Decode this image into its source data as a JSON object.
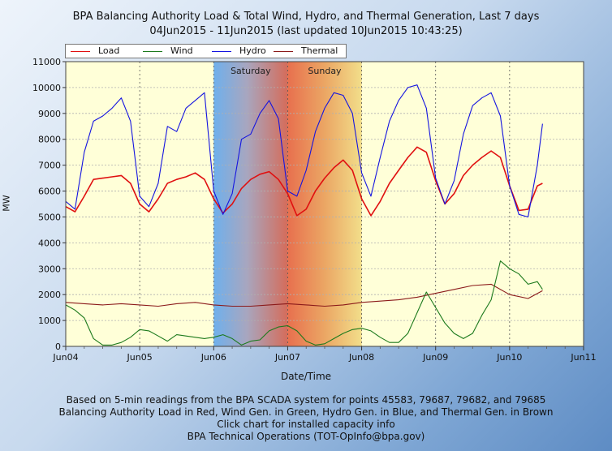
{
  "title": "BPA Balancing Authority Load & Total Wind, Hydro, and Thermal Generation, Last 7 days",
  "subtitle": "04Jun2015 - 11Jun2015 (last updated 10Jun2015 10:43:25)",
  "footer": [
    "Based on 5-min readings from the BPA SCADA system for points 45583, 79687, 79682, and 79685",
    "Balancing Authority Load in Red, Wind Gen. in Green, Hydro Gen. in Blue, and Thermal Gen. in Brown",
    "Click chart for installed capacity info",
    "BPA Technical Operations (TOT-OpInfo@bpa.gov)"
  ],
  "colors": {
    "load": "#e01010",
    "wind": "#1d7a1d",
    "hydro": "#1414e0",
    "thermal": "#8b1a1a",
    "plot_background": "#ffffd8",
    "grid": "#b0b0b0"
  },
  "chart_data": {
    "type": "line",
    "title": "BPA Balancing Authority Load & Total Wind, Hydro, and Thermal Generation, Last 7 days",
    "subtitle": "04Jun2015 - 11Jun2015 (last updated 10Jun2015 10:43:25)",
    "xlabel": "Date/Time",
    "ylabel": "MW",
    "xlim": [
      "2015-06-04 00:00",
      "2015-06-11 00:00"
    ],
    "ylim": [
      0,
      11000
    ],
    "x_ticks": [
      "Jun04",
      "Jun05",
      "Jun06",
      "Jun07",
      "Jun08",
      "Jun09",
      "Jun10",
      "Jun11"
    ],
    "y_ticks": [
      0,
      1000,
      2000,
      3000,
      4000,
      5000,
      6000,
      7000,
      8000,
      9000,
      10000,
      11000
    ],
    "grid": true,
    "legend": "top-left",
    "weekend_bands": [
      {
        "label": "Saturday",
        "start": "2015-06-06 00:00",
        "end": "2015-06-07 00:00"
      },
      {
        "label": "Sunday",
        "start": "2015-06-07 00:00",
        "end": "2015-06-08 00:00"
      }
    ],
    "series": [
      {
        "name": "Load",
        "x": [
          "06-04 00:00",
          "06-04 03:00",
          "06-04 06:00",
          "06-04 09:00",
          "06-04 12:00",
          "06-04 15:00",
          "06-04 18:00",
          "06-04 21:00",
          "06-05 00:00",
          "06-05 03:00",
          "06-05 06:00",
          "06-05 09:00",
          "06-05 12:00",
          "06-05 15:00",
          "06-05 18:00",
          "06-05 21:00",
          "06-06 00:00",
          "06-06 03:00",
          "06-06 06:00",
          "06-06 09:00",
          "06-06 12:00",
          "06-06 15:00",
          "06-06 18:00",
          "06-06 21:00",
          "06-07 00:00",
          "06-07 03:00",
          "06-07 06:00",
          "06-07 09:00",
          "06-07 12:00",
          "06-07 15:00",
          "06-07 18:00",
          "06-07 21:00",
          "06-08 00:00",
          "06-08 03:00",
          "06-08 06:00",
          "06-08 09:00",
          "06-08 12:00",
          "06-08 15:00",
          "06-08 18:00",
          "06-08 21:00",
          "06-09 00:00",
          "06-09 03:00",
          "06-09 06:00",
          "06-09 09:00",
          "06-09 12:00",
          "06-09 15:00",
          "06-09 18:00",
          "06-09 21:00",
          "06-10 00:00",
          "06-10 03:00",
          "06-10 06:00",
          "06-10 09:00",
          "06-10 10:40"
        ],
        "y": [
          5400,
          5200,
          5800,
          6450,
          6500,
          6550,
          6600,
          6300,
          5500,
          5200,
          5700,
          6300,
          6450,
          6550,
          6700,
          6450,
          5700,
          5150,
          5500,
          6100,
          6450,
          6650,
          6750,
          6450,
          5900,
          5050,
          5300,
          6000,
          6500,
          6900,
          7200,
          6800,
          5700,
          5050,
          5600,
          6300,
          6800,
          7300,
          7700,
          7500,
          6400,
          5500,
          5900,
          6600,
          7000,
          7300,
          7550,
          7300,
          6200,
          5250,
          5300,
          6200,
          6300
        ]
      },
      {
        "name": "Wind",
        "x": [
          "06-04 00:00",
          "06-04 03:00",
          "06-04 06:00",
          "06-04 09:00",
          "06-04 12:00",
          "06-04 15:00",
          "06-04 18:00",
          "06-04 21:00",
          "06-05 00:00",
          "06-05 03:00",
          "06-05 06:00",
          "06-05 09:00",
          "06-05 12:00",
          "06-05 15:00",
          "06-05 18:00",
          "06-05 21:00",
          "06-06 00:00",
          "06-06 03:00",
          "06-06 06:00",
          "06-06 09:00",
          "06-06 12:00",
          "06-06 15:00",
          "06-06 18:00",
          "06-06 21:00",
          "06-07 00:00",
          "06-07 03:00",
          "06-07 06:00",
          "06-07 09:00",
          "06-07 12:00",
          "06-07 15:00",
          "06-07 18:00",
          "06-07 21:00",
          "06-08 00:00",
          "06-08 03:00",
          "06-08 06:00",
          "06-08 09:00",
          "06-08 12:00",
          "06-08 15:00",
          "06-08 18:00",
          "06-08 21:00",
          "06-09 00:00",
          "06-09 03:00",
          "06-09 06:00",
          "06-09 09:00",
          "06-09 12:00",
          "06-09 15:00",
          "06-09 18:00",
          "06-09 21:00",
          "06-10 00:00",
          "06-10 03:00",
          "06-10 06:00",
          "06-10 09:00",
          "06-10 10:40"
        ],
        "y": [
          1600,
          1400,
          1100,
          300,
          50,
          50,
          150,
          350,
          650,
          600,
          400,
          200,
          450,
          400,
          350,
          300,
          350,
          450,
          300,
          50,
          200,
          250,
          600,
          750,
          800,
          600,
          200,
          50,
          100,
          300,
          500,
          650,
          700,
          600,
          350,
          150,
          150,
          500,
          1300,
          2100,
          1500,
          900,
          500,
          300,
          500,
          1200,
          1800,
          3300,
          3000,
          2800,
          2400,
          2500,
          2200
        ]
      },
      {
        "name": "Hydro",
        "x": [
          "06-04 00:00",
          "06-04 03:00",
          "06-04 06:00",
          "06-04 09:00",
          "06-04 12:00",
          "06-04 15:00",
          "06-04 18:00",
          "06-04 21:00",
          "06-05 00:00",
          "06-05 03:00",
          "06-05 06:00",
          "06-05 09:00",
          "06-05 12:00",
          "06-05 15:00",
          "06-05 18:00",
          "06-05 21:00",
          "06-06 00:00",
          "06-06 03:00",
          "06-06 06:00",
          "06-06 09:00",
          "06-06 12:00",
          "06-06 15:00",
          "06-06 18:00",
          "06-06 21:00",
          "06-07 00:00",
          "06-07 03:00",
          "06-07 06:00",
          "06-07 09:00",
          "06-07 12:00",
          "06-07 15:00",
          "06-07 18:00",
          "06-07 21:00",
          "06-08 00:00",
          "06-08 03:00",
          "06-08 06:00",
          "06-08 09:00",
          "06-08 12:00",
          "06-08 15:00",
          "06-08 18:00",
          "06-08 21:00",
          "06-09 00:00",
          "06-09 03:00",
          "06-09 06:00",
          "06-09 09:00",
          "06-09 12:00",
          "06-09 15:00",
          "06-09 18:00",
          "06-09 21:00",
          "06-10 00:00",
          "06-10 03:00",
          "06-10 06:00",
          "06-10 09:00",
          "06-10 10:40"
        ],
        "y": [
          5600,
          5300,
          7500,
          8700,
          8900,
          9200,
          9600,
          8700,
          5800,
          5400,
          6300,
          8500,
          8300,
          9200,
          9500,
          9800,
          6000,
          5100,
          5900,
          8000,
          8200,
          9000,
          9500,
          8800,
          6000,
          5800,
          6800,
          8300,
          9200,
          9800,
          9700,
          9000,
          6700,
          5800,
          7300,
          8700,
          9500,
          10000,
          10100,
          9200,
          6500,
          5500,
          6400,
          8200,
          9300,
          9600,
          9800,
          8900,
          6200,
          5100,
          5000,
          7000,
          8600
        ]
      },
      {
        "name": "Thermal",
        "x": [
          "06-04 00:00",
          "06-04 06:00",
          "06-04 12:00",
          "06-04 18:00",
          "06-05 00:00",
          "06-05 06:00",
          "06-05 12:00",
          "06-05 18:00",
          "06-06 00:00",
          "06-06 06:00",
          "06-06 12:00",
          "06-06 18:00",
          "06-07 00:00",
          "06-07 06:00",
          "06-07 12:00",
          "06-07 18:00",
          "06-08 00:00",
          "06-08 06:00",
          "06-08 12:00",
          "06-08 18:00",
          "06-09 00:00",
          "06-09 06:00",
          "06-09 12:00",
          "06-09 18:00",
          "06-10 00:00",
          "06-10 06:00",
          "06-10 10:40"
        ],
        "y": [
          1700,
          1650,
          1600,
          1650,
          1600,
          1550,
          1650,
          1700,
          1600,
          1550,
          1550,
          1600,
          1650,
          1600,
          1550,
          1600,
          1700,
          1750,
          1800,
          1900,
          2050,
          2200,
          2350,
          2400,
          2000,
          1850,
          2150
        ]
      }
    ]
  }
}
